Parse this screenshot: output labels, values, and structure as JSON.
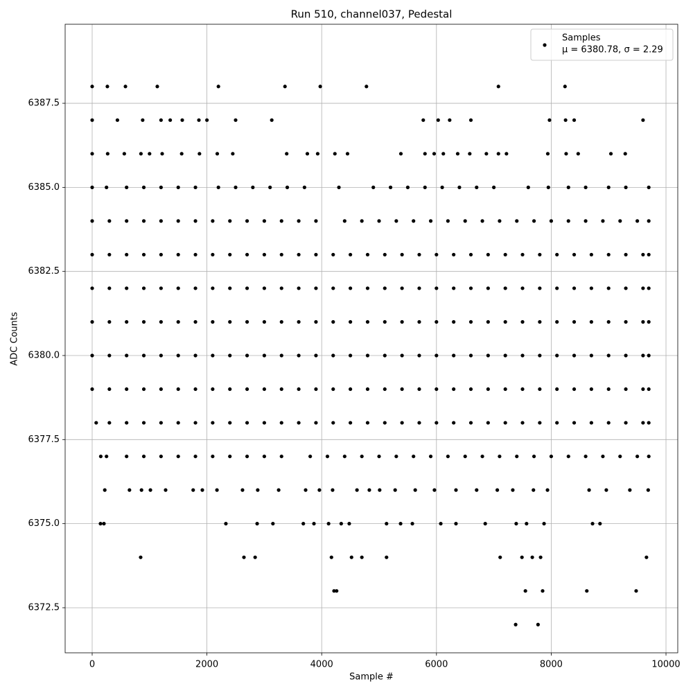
{
  "chart_data": {
    "type": "scatter",
    "title": "Run 510, channel037, Pedestal",
    "x_label": "Sample #",
    "y_label": "ADC Counts",
    "xlim": [
      -471,
      10205
    ],
    "ylim": [
      6371.16,
      6389.85
    ],
    "xticks": [
      0,
      2000,
      4000,
      6000,
      8000,
      10000
    ],
    "yticks": [
      6372.5,
      {
        "value": 6375,
        "label": "6375.0"
      },
      6377.5,
      {
        "value": 6380,
        "label": "6380.0"
      },
      6382.5,
      {
        "value": 6385,
        "label": "6385.0"
      },
      6387.5
    ],
    "grid": true,
    "legend": "upper right",
    "series": [
      {
        "name": "Samples",
        "stats": "μ = 6380.78, σ = 2.29",
        "color": "#000000",
        "x": [
          0,
          265,
          580,
          1135,
          2200,
          3360,
          3975,
          4780,
          7080,
          8240,
          0,
          440,
          880,
          1200,
          1360,
          1570,
          1860,
          2000,
          2500,
          3130,
          5770,
          6030,
          6230,
          6600,
          7970,
          8250,
          8400,
          9600,
          0,
          270,
          560,
          850,
          1000,
          1220,
          1560,
          1870,
          2180,
          2450,
          3390,
          3750,
          3930,
          4230,
          4450,
          5380,
          5800,
          5960,
          6120,
          6370,
          6580,
          6870,
          7080,
          7220,
          7940,
          8260,
          8470,
          9040,
          9290,
          0,
          250,
          600,
          900,
          1200,
          1500,
          1800,
          2200,
          2500,
          2800,
          3100,
          3400,
          3700,
          4300,
          4900,
          5200,
          5500,
          5800,
          6100,
          6400,
          6700,
          7000,
          7600,
          7950,
          8300,
          8600,
          9000,
          9300,
          9700,
          0,
          300,
          600,
          900,
          1200,
          1500,
          1800,
          2100,
          2400,
          2700,
          3000,
          3300,
          3600,
          3900,
          4400,
          4700,
          5000,
          5300,
          5600,
          5900,
          6200,
          6500,
          6800,
          7100,
          7400,
          7700,
          8000,
          8300,
          8600,
          8900,
          9200,
          9500,
          9700,
          0,
          300,
          600,
          900,
          1200,
          1500,
          1800,
          2100,
          2400,
          2700,
          3000,
          3300,
          3600,
          3900,
          4200,
          4500,
          4800,
          5100,
          5400,
          5700,
          6000,
          6300,
          6600,
          6900,
          7200,
          7500,
          7800,
          8100,
          8400,
          8700,
          9000,
          9300,
          9600,
          9700,
          0,
          300,
          600,
          900,
          1200,
          1500,
          1800,
          2100,
          2400,
          2700,
          3000,
          3300,
          3600,
          3900,
          4200,
          4500,
          4800,
          5100,
          5400,
          5700,
          6000,
          6300,
          6600,
          6900,
          7200,
          7500,
          7800,
          8100,
          8400,
          8700,
          9000,
          9300,
          9600,
          9700,
          0,
          300,
          600,
          900,
          1200,
          1500,
          1800,
          2100,
          2400,
          2700,
          3000,
          3300,
          3600,
          3900,
          4200,
          4500,
          4800,
          5100,
          5400,
          5700,
          6000,
          6300,
          6600,
          6900,
          7200,
          7500,
          7800,
          8100,
          8400,
          8700,
          9000,
          9300,
          9600,
          9700,
          0,
          300,
          600,
          900,
          1200,
          1500,
          1800,
          2100,
          2400,
          2700,
          3000,
          3300,
          3600,
          3900,
          4200,
          4500,
          4800,
          5100,
          5400,
          5700,
          6000,
          6300,
          6600,
          6900,
          7200,
          7500,
          7800,
          8100,
          8400,
          8700,
          9000,
          9300,
          9600,
          9700,
          0,
          300,
          600,
          900,
          1200,
          1500,
          1800,
          2100,
          2400,
          2700,
          3000,
          3300,
          3600,
          3900,
          4200,
          4500,
          4800,
          5100,
          5400,
          5700,
          6000,
          6300,
          6600,
          6900,
          7200,
          7500,
          7800,
          8100,
          8400,
          8700,
          9000,
          9300,
          9600,
          9700,
          70,
          300,
          600,
          900,
          1200,
          1500,
          1800,
          2100,
          2400,
          2700,
          3000,
          3300,
          3600,
          3900,
          4200,
          4500,
          4800,
          5100,
          5400,
          5700,
          6000,
          6300,
          6600,
          6900,
          7200,
          7500,
          7800,
          8100,
          8400,
          8700,
          9000,
          9300,
          9600,
          9700,
          150,
          250,
          600,
          900,
          1200,
          1500,
          1800,
          2100,
          2400,
          2700,
          3000,
          3300,
          3800,
          4100,
          4400,
          4700,
          5000,
          5300,
          5600,
          5900,
          6200,
          6500,
          6800,
          7100,
          7400,
          7700,
          8000,
          8300,
          8600,
          8900,
          9200,
          9500,
          9700,
          220,
          650,
          860,
          1015,
          1280,
          1760,
          1920,
          2175,
          2620,
          2885,
          3250,
          3720,
          3960,
          4190,
          4615,
          4830,
          5010,
          5280,
          5630,
          5965,
          6340,
          6700,
          7060,
          7330,
          7690,
          7935,
          8660,
          8960,
          9370,
          9690,
          145,
          205,
          2330,
          2875,
          3150,
          3680,
          3865,
          4120,
          4340,
          4480,
          5130,
          5375,
          5580,
          6075,
          6340,
          6850,
          7390,
          7570,
          7875,
          8720,
          8850,
          845,
          2645,
          2840,
          4170,
          4520,
          4700,
          5130,
          7110,
          7490,
          7670,
          7815,
          9660,
          4215,
          4260,
          7550,
          7850,
          8620,
          9480,
          7380,
          7770
        ],
        "values": [
          6388,
          6388,
          6388,
          6388,
          6388,
          6388,
          6388,
          6388,
          6388,
          6388,
          6387,
          6387,
          6387,
          6387,
          6387,
          6387,
          6387,
          6387,
          6387,
          6387,
          6387,
          6387,
          6387,
          6387,
          6387,
          6387,
          6387,
          6387,
          6386,
          6386,
          6386,
          6386,
          6386,
          6386,
          6386,
          6386,
          6386,
          6386,
          6386,
          6386,
          6386,
          6386,
          6386,
          6386,
          6386,
          6386,
          6386,
          6386,
          6386,
          6386,
          6386,
          6386,
          6386,
          6386,
          6386,
          6386,
          6386,
          6385,
          6385,
          6385,
          6385,
          6385,
          6385,
          6385,
          6385,
          6385,
          6385,
          6385,
          6385,
          6385,
          6385,
          6385,
          6385,
          6385,
          6385,
          6385,
          6385,
          6385,
          6385,
          6385,
          6385,
          6385,
          6385,
          6385,
          6385,
          6385,
          6384,
          6384,
          6384,
          6384,
          6384,
          6384,
          6384,
          6384,
          6384,
          6384,
          6384,
          6384,
          6384,
          6384,
          6384,
          6384,
          6384,
          6384,
          6384,
          6384,
          6384,
          6384,
          6384,
          6384,
          6384,
          6384,
          6384,
          6384,
          6384,
          6384,
          6384,
          6384,
          6384,
          6383,
          6383,
          6383,
          6383,
          6383,
          6383,
          6383,
          6383,
          6383,
          6383,
          6383,
          6383,
          6383,
          6383,
          6383,
          6383,
          6383,
          6383,
          6383,
          6383,
          6383,
          6383,
          6383,
          6383,
          6383,
          6383,
          6383,
          6383,
          6383,
          6383,
          6383,
          6383,
          6383,
          6383,
          6382,
          6382,
          6382,
          6382,
          6382,
          6382,
          6382,
          6382,
          6382,
          6382,
          6382,
          6382,
          6382,
          6382,
          6382,
          6382,
          6382,
          6382,
          6382,
          6382,
          6382,
          6382,
          6382,
          6382,
          6382,
          6382,
          6382,
          6382,
          6382,
          6382,
          6382,
          6382,
          6382,
          6382,
          6381,
          6381,
          6381,
          6381,
          6381,
          6381,
          6381,
          6381,
          6381,
          6381,
          6381,
          6381,
          6381,
          6381,
          6381,
          6381,
          6381,
          6381,
          6381,
          6381,
          6381,
          6381,
          6381,
          6381,
          6381,
          6381,
          6381,
          6381,
          6381,
          6381,
          6381,
          6381,
          6381,
          6381,
          6380,
          6380,
          6380,
          6380,
          6380,
          6380,
          6380,
          6380,
          6380,
          6380,
          6380,
          6380,
          6380,
          6380,
          6380,
          6380,
          6380,
          6380,
          6380,
          6380,
          6380,
          6380,
          6380,
          6380,
          6380,
          6380,
          6380,
          6380,
          6380,
          6380,
          6380,
          6380,
          6380,
          6380,
          6379,
          6379,
          6379,
          6379,
          6379,
          6379,
          6379,
          6379,
          6379,
          6379,
          6379,
          6379,
          6379,
          6379,
          6379,
          6379,
          6379,
          6379,
          6379,
          6379,
          6379,
          6379,
          6379,
          6379,
          6379,
          6379,
          6379,
          6379,
          6379,
          6379,
          6379,
          6379,
          6379,
          6379,
          6378,
          6378,
          6378,
          6378,
          6378,
          6378,
          6378,
          6378,
          6378,
          6378,
          6378,
          6378,
          6378,
          6378,
          6378,
          6378,
          6378,
          6378,
          6378,
          6378,
          6378,
          6378,
          6378,
          6378,
          6378,
          6378,
          6378,
          6378,
          6378,
          6378,
          6378,
          6378,
          6378,
          6378,
          6377,
          6377,
          6377,
          6377,
          6377,
          6377,
          6377,
          6377,
          6377,
          6377,
          6377,
          6377,
          6377,
          6377,
          6377,
          6377,
          6377,
          6377,
          6377,
          6377,
          6377,
          6377,
          6377,
          6377,
          6377,
          6377,
          6377,
          6377,
          6377,
          6377,
          6377,
          6377,
          6377,
          6376,
          6376,
          6376,
          6376,
          6376,
          6376,
          6376,
          6376,
          6376,
          6376,
          6376,
          6376,
          6376,
          6376,
          6376,
          6376,
          6376,
          6376,
          6376,
          6376,
          6376,
          6376,
          6376,
          6376,
          6376,
          6376,
          6376,
          6376,
          6376,
          6376,
          6375,
          6375,
          6375,
          6375,
          6375,
          6375,
          6375,
          6375,
          6375,
          6375,
          6375,
          6375,
          6375,
          6375,
          6375,
          6375,
          6375,
          6375,
          6375,
          6375,
          6375,
          6374,
          6374,
          6374,
          6374,
          6374,
          6374,
          6374,
          6374,
          6374,
          6374,
          6374,
          6374,
          6373,
          6373,
          6373,
          6373,
          6373,
          6373,
          6372,
          6372
        ]
      }
    ]
  }
}
